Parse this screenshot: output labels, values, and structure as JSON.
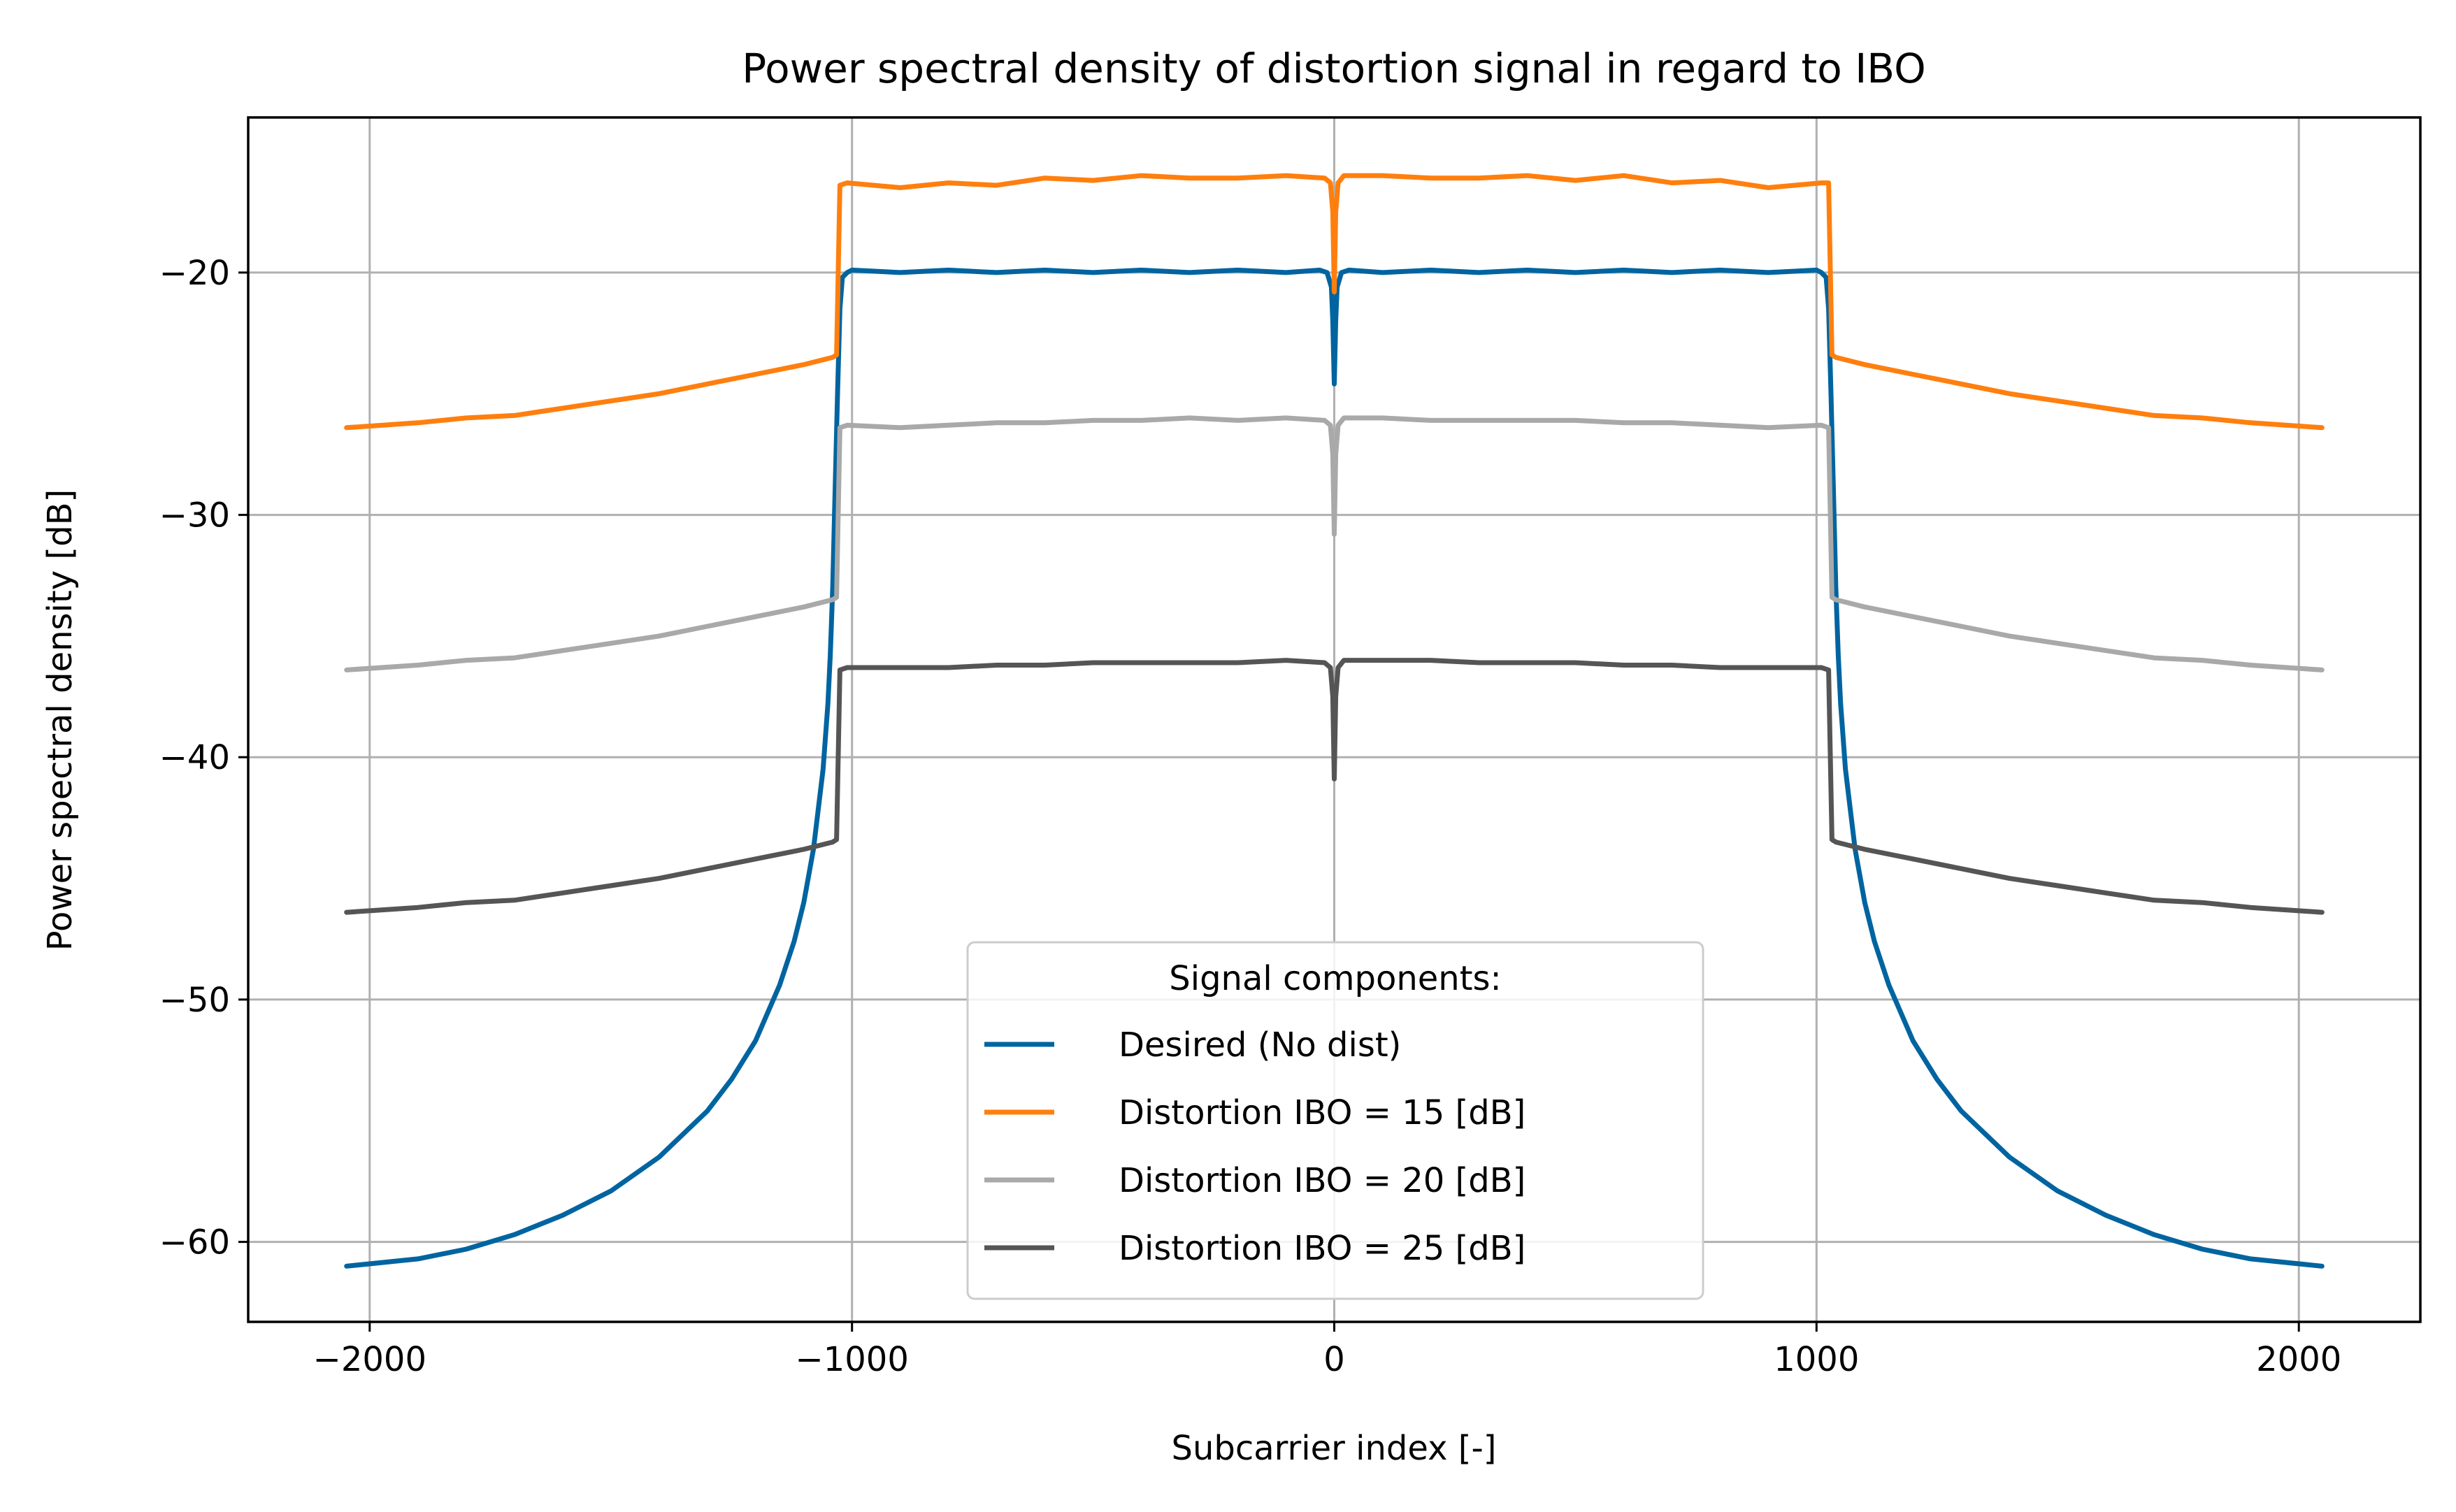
{
  "chart_data": {
    "type": "line",
    "title": "Power spectral density of distortion signal in regard to IBO",
    "xlabel": "Subcarrier index [-]",
    "ylabel": "Power spectral density [dB]",
    "xlim": [
      -2252,
      2252
    ],
    "ylim": [
      -63.3,
      -13.6
    ],
    "xticks": [
      -2000,
      -1000,
      0,
      1000,
      2000
    ],
    "xtick_labels": [
      "−2000",
      "−1000",
      "0",
      "1000",
      "2000"
    ],
    "yticks": [
      -60,
      -50,
      -40,
      -30,
      -20
    ],
    "ytick_labels": [
      "−60",
      "−50",
      "−40",
      "−30",
      "−20"
    ],
    "grid": true,
    "legend": {
      "title": "Signal components:",
      "placement": "lower center"
    },
    "series": [
      {
        "name": "Desired (No dist)",
        "color": "#0064a0",
        "x": [
          -2048,
          -1900,
          -1800,
          -1700,
          -1600,
          -1500,
          -1400,
          -1300,
          -1250,
          -1200,
          -1150,
          -1120,
          -1100,
          -1080,
          -1060,
          -1050,
          -1045,
          -1040,
          -1035,
          -1030,
          -1025,
          -1020,
          -1010,
          -1000,
          -900,
          -800,
          -700,
          -600,
          -500,
          -400,
          -300,
          -200,
          -100,
          -30,
          -15,
          -6,
          -3,
          0,
          3,
          6,
          15,
          30,
          100,
          200,
          300,
          400,
          500,
          600,
          700,
          800,
          900,
          1000,
          1010,
          1020,
          1025,
          1030,
          1035,
          1040,
          1045,
          1050,
          1060,
          1080,
          1100,
          1120,
          1150,
          1200,
          1250,
          1300,
          1400,
          1500,
          1600,
          1700,
          1800,
          1900,
          2048
        ],
        "y": [
          -61.0,
          -60.7,
          -60.3,
          -59.7,
          -58.9,
          -57.9,
          -56.5,
          -54.6,
          -53.3,
          -51.7,
          -49.4,
          -47.6,
          -46.0,
          -43.8,
          -40.5,
          -37.8,
          -35.8,
          -33.0,
          -29.0,
          -25.0,
          -21.5,
          -20.2,
          -20.0,
          -19.9,
          -20.0,
          -19.9,
          -20.0,
          -19.9,
          -20.0,
          -19.9,
          -20.0,
          -19.9,
          -20.0,
          -19.9,
          -20.0,
          -20.6,
          -22.0,
          -24.6,
          -22.0,
          -20.6,
          -20.0,
          -19.9,
          -20.0,
          -19.9,
          -20.0,
          -19.9,
          -20.0,
          -19.9,
          -20.0,
          -19.9,
          -20.0,
          -19.9,
          -20.0,
          -20.2,
          -21.5,
          -25.0,
          -29.0,
          -33.0,
          -35.8,
          -37.8,
          -40.5,
          -43.8,
          -46.0,
          -47.6,
          -49.4,
          -51.7,
          -53.3,
          -54.6,
          -56.5,
          -57.9,
          -58.9,
          -59.7,
          -60.3,
          -60.7,
          -61.0
        ]
      },
      {
        "name": "Distortion IBO = 15 [dB]",
        "color": "#ff7f0e",
        "x": [
          -2048,
          -1900,
          -1800,
          -1700,
          -1600,
          -1500,
          -1400,
          -1300,
          -1200,
          -1100,
          -1040,
          -1032,
          -1025,
          -1010,
          -900,
          -800,
          -700,
          -600,
          -500,
          -400,
          -300,
          -200,
          -100,
          -20,
          -8,
          -3,
          0,
          3,
          8,
          20,
          100,
          200,
          300,
          400,
          500,
          600,
          700,
          800,
          900,
          1010,
          1025,
          1032,
          1040,
          1100,
          1200,
          1300,
          1400,
          1500,
          1600,
          1700,
          1800,
          1900,
          2048
        ],
        "y": [
          -26.4,
          -26.2,
          -26.0,
          -25.9,
          -25.6,
          -25.3,
          -25.0,
          -24.6,
          -24.2,
          -23.8,
          -23.5,
          -23.4,
          -16.4,
          -16.3,
          -16.5,
          -16.3,
          -16.4,
          -16.1,
          -16.2,
          -16.0,
          -16.1,
          -16.1,
          -16.0,
          -16.1,
          -16.3,
          -17.5,
          -20.8,
          -17.5,
          -16.3,
          -16.0,
          -16.0,
          -16.1,
          -16.1,
          -16.0,
          -16.2,
          -16.0,
          -16.3,
          -16.2,
          -16.5,
          -16.3,
          -16.3,
          -23.4,
          -23.5,
          -23.8,
          -24.2,
          -24.6,
          -25.0,
          -25.3,
          -25.6,
          -25.9,
          -26.0,
          -26.2,
          -26.4
        ]
      },
      {
        "name": "Distortion IBO = 20 [dB]",
        "color": "#a9a9a9",
        "x": [
          -2048,
          -1900,
          -1800,
          -1700,
          -1600,
          -1500,
          -1400,
          -1300,
          -1200,
          -1100,
          -1040,
          -1032,
          -1025,
          -1010,
          -900,
          -800,
          -700,
          -600,
          -500,
          -400,
          -300,
          -200,
          -100,
          -20,
          -8,
          -3,
          0,
          3,
          8,
          20,
          100,
          200,
          300,
          400,
          500,
          600,
          700,
          800,
          900,
          1010,
          1025,
          1032,
          1040,
          1100,
          1200,
          1300,
          1400,
          1500,
          1600,
          1700,
          1800,
          1900,
          2048
        ],
        "y": [
          -36.4,
          -36.2,
          -36.0,
          -35.9,
          -35.6,
          -35.3,
          -35.0,
          -34.6,
          -34.2,
          -33.8,
          -33.5,
          -33.4,
          -26.4,
          -26.3,
          -26.4,
          -26.3,
          -26.2,
          -26.2,
          -26.1,
          -26.1,
          -26.0,
          -26.1,
          -26.0,
          -26.1,
          -26.3,
          -27.5,
          -30.8,
          -27.5,
          -26.3,
          -26.0,
          -26.0,
          -26.1,
          -26.1,
          -26.1,
          -26.1,
          -26.2,
          -26.2,
          -26.3,
          -26.4,
          -26.3,
          -26.4,
          -33.4,
          -33.5,
          -33.8,
          -34.2,
          -34.6,
          -35.0,
          -35.3,
          -35.6,
          -35.9,
          -36.0,
          -36.2,
          -36.4
        ]
      },
      {
        "name": "Distortion IBO = 25 [dB]",
        "color": "#555555",
        "x": [
          -2048,
          -1900,
          -1800,
          -1700,
          -1600,
          -1500,
          -1400,
          -1300,
          -1200,
          -1100,
          -1040,
          -1032,
          -1025,
          -1010,
          -900,
          -800,
          -700,
          -600,
          -500,
          -400,
          -300,
          -200,
          -100,
          -20,
          -8,
          -3,
          0,
          3,
          8,
          20,
          100,
          200,
          300,
          400,
          500,
          600,
          700,
          800,
          900,
          1010,
          1025,
          1032,
          1040,
          1100,
          1200,
          1300,
          1400,
          1500,
          1600,
          1700,
          1800,
          1900,
          2048
        ],
        "y": [
          -46.4,
          -46.2,
          -46.0,
          -45.9,
          -45.6,
          -45.3,
          -45.0,
          -44.6,
          -44.2,
          -43.8,
          -43.5,
          -43.4,
          -36.4,
          -36.3,
          -36.3,
          -36.3,
          -36.2,
          -36.2,
          -36.1,
          -36.1,
          -36.1,
          -36.1,
          -36.0,
          -36.1,
          -36.3,
          -37.5,
          -40.9,
          -37.5,
          -36.3,
          -36.0,
          -36.0,
          -36.0,
          -36.1,
          -36.1,
          -36.1,
          -36.2,
          -36.2,
          -36.3,
          -36.3,
          -36.3,
          -36.4,
          -43.4,
          -43.5,
          -43.8,
          -44.2,
          -44.6,
          -45.0,
          -45.3,
          -45.6,
          -45.9,
          -46.0,
          -46.2,
          -46.4
        ]
      }
    ]
  }
}
